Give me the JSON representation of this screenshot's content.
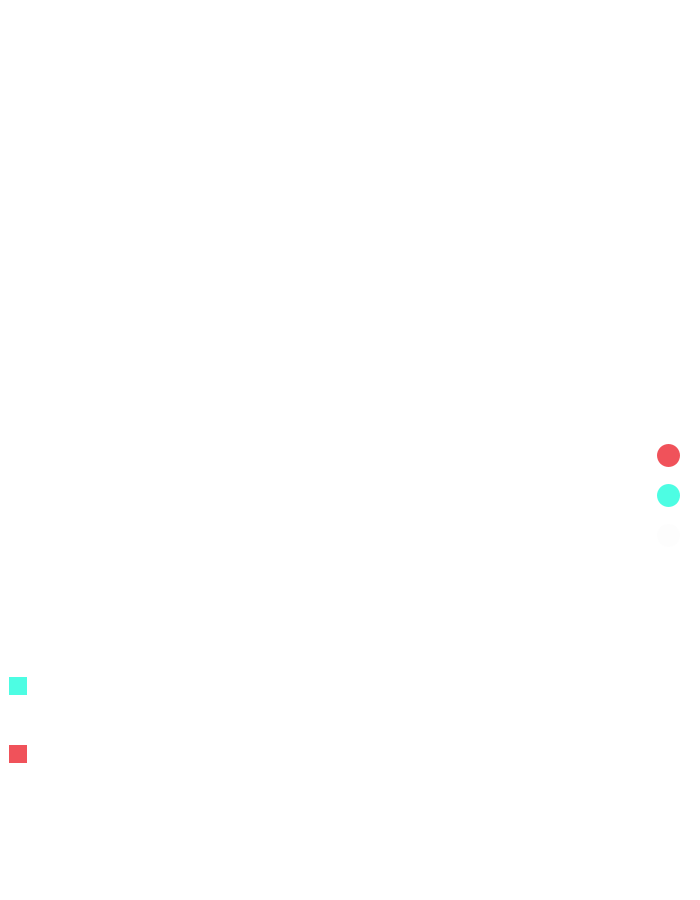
{
  "colors": {
    "background": "#ffffff",
    "red": "#f0525a",
    "teal": "#4dfde3",
    "faint": "#fdfdfd"
  },
  "side_dots": [
    {
      "name": "red-dot",
      "color": "#f0525a"
    },
    {
      "name": "teal-dot",
      "color": "#4dfde3"
    },
    {
      "name": "faint-dot",
      "color": "#fdfdfd"
    }
  ],
  "squares": [
    {
      "name": "teal-square",
      "color": "#4dfde3"
    },
    {
      "name": "red-square",
      "color": "#f0525a"
    }
  ]
}
